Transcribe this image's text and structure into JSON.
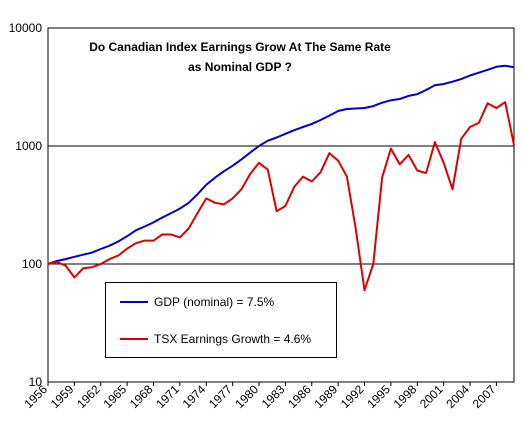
{
  "chart_data": {
    "type": "line",
    "title": "Do Canadian Index Earnings Grow At The Same Rate as Nominal GDP ?",
    "title_lines": [
      "Do Canadian Index Earnings Grow At The Same Rate",
      "as Nominal GDP ?"
    ],
    "y_scale": "log",
    "ylim": [
      10,
      10000
    ],
    "y_ticks": [
      "10",
      "100",
      "1000",
      "10000"
    ],
    "y_tick_values": [
      10,
      100,
      1000,
      10000
    ],
    "xlim": [
      1956,
      2009
    ],
    "x_ticks": [
      "1956",
      "1959",
      "1962",
      "1965",
      "1968",
      "1971",
      "1974",
      "1977",
      "1980",
      "1983",
      "1986",
      "1989",
      "1992",
      "1995",
      "1998",
      "2001",
      "2004",
      "2007"
    ],
    "grid": "horizontal major lines",
    "legend_position": "lower-center",
    "series": [
      {
        "name": "GDP (nominal) = 7.5%",
        "color": "#0000cc",
        "x": [
          1956,
          1957,
          1958,
          1959,
          1960,
          1961,
          1962,
          1963,
          1964,
          1965,
          1966,
          1967,
          1968,
          1969,
          1970,
          1971,
          1972,
          1973,
          1974,
          1975,
          1976,
          1977,
          1978,
          1979,
          1980,
          1981,
          1982,
          1983,
          1984,
          1985,
          1986,
          1987,
          1988,
          1989,
          1990,
          1991,
          1992,
          1993,
          1994,
          1995,
          1996,
          1997,
          1998,
          1999,
          2000,
          2001,
          2002,
          2003,
          2004,
          2005,
          2006,
          2007,
          2008,
          2009
        ],
        "values": [
          100,
          106,
          110,
          115,
          120,
          125,
          134,
          143,
          155,
          172,
          193,
          208,
          225,
          248,
          270,
          295,
          330,
          390,
          470,
          540,
          610,
          680,
          770,
          880,
          1000,
          1110,
          1180,
          1270,
          1360,
          1450,
          1540,
          1660,
          1810,
          1980,
          2060,
          2080,
          2100,
          2180,
          2330,
          2440,
          2500,
          2660,
          2750,
          2980,
          3270,
          3350,
          3510,
          3690,
          3960,
          4180,
          4420,
          4690,
          4780,
          4650
        ]
      },
      {
        "name": "TSX Earnings Growth = 4.6%",
        "color": "#dd0000",
        "x": [
          1956,
          1957,
          1958,
          1959,
          1960,
          1961,
          1962,
          1963,
          1964,
          1965,
          1966,
          1967,
          1968,
          1969,
          1970,
          1971,
          1972,
          1973,
          1974,
          1975,
          1976,
          1977,
          1978,
          1979,
          1980,
          1981,
          1982,
          1983,
          1984,
          1985,
          1986,
          1987,
          1988,
          1989,
          1990,
          1991,
          1992,
          1993,
          1994,
          1995,
          1996,
          1997,
          1998,
          1999,
          2000,
          2001,
          2002,
          2003,
          2004,
          2005,
          2006,
          2007,
          2008,
          2009
        ],
        "values": [
          100,
          104,
          97,
          77,
          92,
          94,
          100,
          110,
          118,
          135,
          150,
          158,
          158,
          178,
          178,
          168,
          200,
          270,
          360,
          330,
          320,
          360,
          430,
          580,
          720,
          630,
          280,
          310,
          450,
          550,
          500,
          600,
          870,
          750,
          550,
          200,
          60,
          100,
          540,
          950,
          700,
          840,
          620,
          590,
          1080,
          720,
          430,
          1150,
          1450,
          1570,
          2300,
          2100,
          2350,
          1020
        ]
      }
    ]
  }
}
